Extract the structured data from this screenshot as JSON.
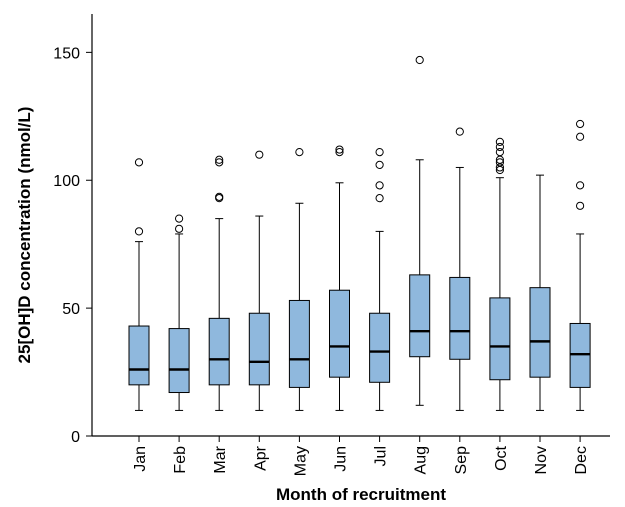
{
  "chart_data": {
    "type": "box",
    "title": "",
    "xlabel": "Month of recruitment",
    "ylabel": "25[OH]D concentration (nmol/L)",
    "ylim": [
      0,
      165
    ],
    "yticks": [
      0,
      50,
      100,
      150
    ],
    "categories": [
      "Jan",
      "Feb",
      "Mar",
      "Apr",
      "May",
      "Jun",
      "Jul",
      "Aug",
      "Sep",
      "Oct",
      "Nov",
      "Dec"
    ],
    "box_color": "#8fb8dd",
    "grid": false,
    "boxes": [
      {
        "category": "Jan",
        "min": 10,
        "q1": 20,
        "median": 26,
        "q3": 43,
        "max": 76,
        "outliers": [
          80,
          107
        ]
      },
      {
        "category": "Feb",
        "min": 10,
        "q1": 17,
        "median": 26,
        "q3": 42,
        "max": 79,
        "outliers": [
          81,
          85
        ]
      },
      {
        "category": "Mar",
        "min": 10,
        "q1": 20,
        "median": 30,
        "q3": 46,
        "max": 85,
        "outliers": [
          93,
          93.5,
          107,
          108
        ]
      },
      {
        "category": "Apr",
        "min": 10,
        "q1": 20,
        "median": 29,
        "q3": 48,
        "max": 86,
        "outliers": [
          110
        ]
      },
      {
        "category": "May",
        "min": 10,
        "q1": 19,
        "median": 30,
        "q3": 53,
        "max": 91,
        "outliers": [
          111
        ]
      },
      {
        "category": "Jun",
        "min": 10,
        "q1": 23,
        "median": 35,
        "q3": 57,
        "max": 99,
        "outliers": [
          111,
          112
        ]
      },
      {
        "category": "Jul",
        "min": 10,
        "q1": 21,
        "median": 33,
        "q3": 48,
        "max": 80,
        "outliers": [
          93,
          98,
          106,
          111
        ]
      },
      {
        "category": "Aug",
        "min": 12,
        "q1": 31,
        "median": 41,
        "q3": 63,
        "max": 108,
        "outliers": [
          147
        ]
      },
      {
        "category": "Sep",
        "min": 10,
        "q1": 30,
        "median": 41,
        "q3": 62,
        "max": 105,
        "outliers": [
          119
        ]
      },
      {
        "category": "Oct",
        "min": 10,
        "q1": 22,
        "median": 35,
        "q3": 54,
        "max": 101,
        "outliers": [
          104,
          105,
          107,
          108,
          111,
          113,
          115
        ]
      },
      {
        "category": "Nov",
        "min": 10,
        "q1": 23,
        "median": 37,
        "q3": 58,
        "max": 102,
        "outliers": []
      },
      {
        "category": "Dec",
        "min": 10,
        "q1": 19,
        "median": 32,
        "q3": 44,
        "max": 79,
        "outliers": [
          90,
          98,
          117,
          122
        ]
      }
    ]
  }
}
